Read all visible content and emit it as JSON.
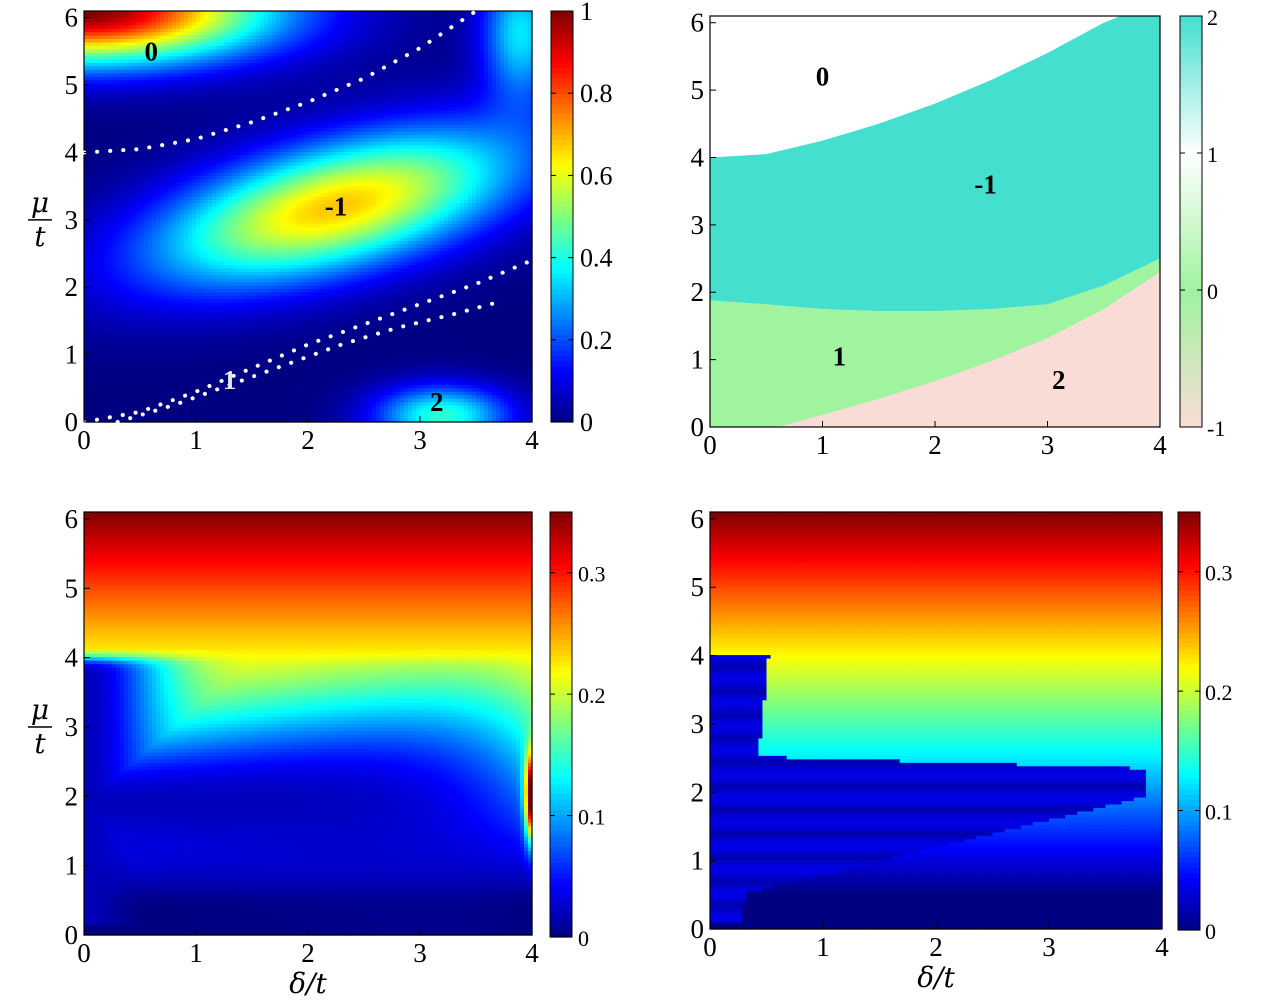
{
  "chart_data": [
    {
      "type": "heatmap",
      "panel": "top-left",
      "x": {
        "tick_labels": [
          "0",
          "1",
          "2",
          "3",
          "4"
        ],
        "range": [
          0,
          4
        ]
      },
      "y": {
        "tick_labels": [
          "0",
          "1",
          "2",
          "3",
          "4",
          "5",
          "6"
        ],
        "range": [
          0,
          6.1
        ],
        "label_num": "μ",
        "label_den": "t"
      },
      "colorbar": {
        "range": [
          0,
          1
        ],
        "tick_labels": [
          "0",
          "0.2",
          "0.4",
          "0.6",
          "0.8",
          "1"
        ],
        "colormap": "jet"
      },
      "region_labels": [
        {
          "text": "0",
          "x": 0.6,
          "y": 5.5,
          "color": "dark"
        },
        {
          "text": "-1",
          "x": 2.25,
          "y": 3.2,
          "color": "dark"
        },
        {
          "text": "1",
          "x": 1.3,
          "y": 0.62,
          "color": "light"
        },
        {
          "text": "2",
          "x": 3.15,
          "y": 0.3,
          "color": "dark"
        }
      ],
      "boundary_curves": [
        {
          "style": "white-dotted",
          "x": [
            0,
            0.5,
            1,
            1.5,
            2,
            2.5,
            3,
            3.5
          ],
          "y": [
            4.0,
            4.05,
            4.2,
            4.45,
            4.75,
            5.1,
            5.55,
            6.1
          ]
        },
        {
          "style": "white-dotted",
          "x": [
            0,
            0.5,
            1,
            1.5,
            2,
            2.5,
            3,
            3.5,
            4
          ],
          "y": [
            0,
            0.15,
            0.45,
            0.8,
            1.15,
            1.45,
            1.75,
            2.05,
            2.4
          ]
        },
        {
          "style": "white-dotted",
          "x": [
            0.3,
            0.8,
            1.3,
            1.8,
            2.3,
            2.8,
            3.3,
            3.7
          ],
          "y": [
            0,
            0.25,
            0.55,
            0.85,
            1.15,
            1.4,
            1.6,
            1.78
          ]
        }
      ]
    },
    {
      "type": "heatmap",
      "panel": "top-right",
      "x": {
        "tick_labels": [
          "0",
          "1",
          "2",
          "3",
          "4"
        ],
        "range": [
          0,
          4
        ]
      },
      "y": {
        "tick_labels": [
          "0",
          "1",
          "2",
          "3",
          "4",
          "5",
          "6"
        ],
        "range": [
          0,
          6.1
        ]
      },
      "colorbar": {
        "range": [
          -1,
          2
        ],
        "tick_labels": [
          "-1",
          "0",
          "1",
          "2"
        ],
        "colors": [
          "#fadcd7",
          "#a0f39f",
          "#ffffff",
          "#44dfce"
        ]
      },
      "phase_values": [
        0,
        -1,
        1,
        2
      ],
      "region_labels": [
        {
          "text": "0",
          "x": 1.0,
          "y": 5.2
        },
        {
          "text": "-1",
          "x": 2.45,
          "y": 3.6
        },
        {
          "text": "1",
          "x": 1.15,
          "y": 1.05
        },
        {
          "text": "2",
          "x": 3.1,
          "y": 0.7
        }
      ],
      "boundaries": {
        "upper_x": [
          0,
          0.5,
          1,
          1.5,
          2,
          2.5,
          3,
          3.5,
          3.65,
          4
        ],
        "upper_y": [
          4.0,
          4.05,
          4.25,
          4.5,
          4.8,
          5.15,
          5.55,
          6.0,
          6.1,
          6.1
        ],
        "lower_x": [
          0,
          0.5,
          1,
          1.5,
          2,
          2.5,
          3,
          3.5,
          4
        ],
        "lower_y": [
          1.88,
          1.82,
          1.75,
          1.72,
          1.72,
          1.75,
          1.82,
          2.1,
          2.5
        ],
        "p2_x": [
          0.6,
          1,
          1.5,
          2,
          2.5,
          3,
          3.5,
          4
        ],
        "p2_y": [
          0,
          0.18,
          0.42,
          0.68,
          0.98,
          1.32,
          1.75,
          2.3
        ]
      }
    },
    {
      "type": "heatmap",
      "panel": "bottom-left",
      "x": {
        "tick_labels": [
          "0",
          "1",
          "2",
          "3",
          "4"
        ],
        "range": [
          0,
          4
        ],
        "label": "δ/t"
      },
      "y": {
        "tick_labels": [
          "0",
          "1",
          "2",
          "3",
          "4",
          "5",
          "6"
        ],
        "range": [
          0,
          6.1
        ],
        "label_num": "μ",
        "label_den": "t"
      },
      "colorbar": {
        "range": [
          0,
          0.35
        ],
        "tick_labels": [
          "0",
          "0.1",
          "0.2",
          "0.3"
        ],
        "colormap": "jet"
      }
    },
    {
      "type": "heatmap",
      "panel": "bottom-right",
      "x": {
        "tick_labels": [
          "0",
          "1",
          "2",
          "3",
          "4"
        ],
        "range": [
          0,
          4
        ],
        "label": "δ/t"
      },
      "y": {
        "tick_labels": [
          "0",
          "1",
          "2",
          "3",
          "4",
          "5",
          "6"
        ],
        "range": [
          0,
          6.1
        ]
      },
      "colorbar": {
        "range": [
          0,
          0.35
        ],
        "tick_labels": [
          "0",
          "0.1",
          "0.2",
          "0.3"
        ],
        "colormap": "jet"
      }
    }
  ]
}
